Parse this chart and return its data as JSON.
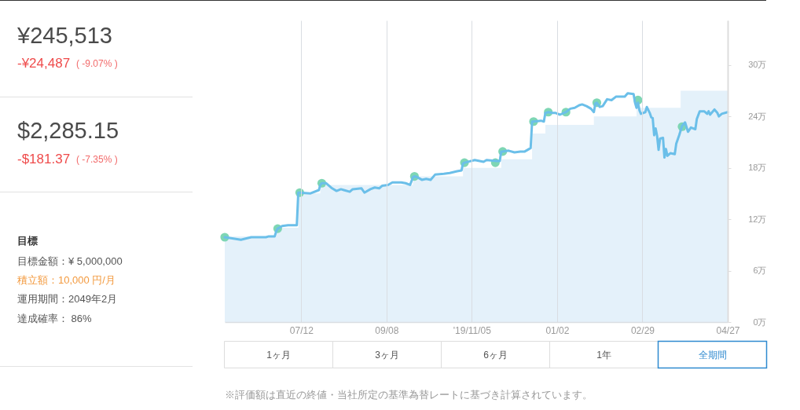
{
  "chart_data": [
    {
      "type": "other",
      "annotations": [
        "¥245,513",
        "-¥24,487",
        "( -9.07% )",
        "$2,285.15",
        "-$181.37",
        "( -7.35% )",
        "目標",
        "目標金額：¥ 5,000,000",
        "積立額：10,000 円/月",
        "運用期間：2049年2月",
        "達成確率： 86%"
      ]
    },
    {
      "type": "line",
      "xlim": [
        "2019-05-21",
        "2020-04-27"
      ],
      "xticks": [
        {
          "value": "2019-07-12",
          "label": "07/12"
        },
        {
          "value": "2019-09-08",
          "label": "09/08"
        },
        {
          "value": "2019-11-05",
          "label": "'19/11/05"
        },
        {
          "value": "2020-01-02",
          "label": "01/02"
        },
        {
          "value": "2020-02-29",
          "label": "02/29"
        },
        {
          "value": "2020-04-27",
          "label": "04/27"
        }
      ],
      "ylim": [
        0,
        35.2
      ],
      "yticks": [
        {
          "value": 0,
          "label": "0万"
        },
        {
          "value": 6,
          "label": "6万"
        },
        {
          "value": 12,
          "label": "12万"
        },
        {
          "value": 18,
          "label": "18万"
        },
        {
          "value": 24,
          "label": "24万"
        },
        {
          "value": 30,
          "label": "30万"
        }
      ],
      "grid": "x",
      "series": [
        {
          "type": "area",
          "color": "#e4f1fa",
          "x": [
            "2019-05-21",
            "2019-06-25",
            "2019-06-25",
            "2019-07-10",
            "2019-07-10",
            "2019-07-25",
            "2019-07-25",
            "2019-09-26",
            "2019-09-26",
            "2019-10-30",
            "2019-10-30",
            "2019-11-25",
            "2019-11-25",
            "2019-12-16",
            "2019-12-16",
            "2019-12-25",
            "2019-12-25",
            "2020-01-27",
            "2020-01-27",
            "2020-02-25",
            "2020-02-25",
            "2020-03-26",
            "2020-03-26",
            "2020-04-27"
          ],
          "values": [
            10,
            10,
            11,
            11,
            15,
            15,
            16,
            16,
            17,
            17,
            18,
            18,
            19,
            19,
            22,
            22,
            23,
            23,
            24,
            24,
            25,
            25,
            27,
            27
          ]
        },
        {
          "type": "line",
          "color": "#6bbfe9",
          "x": [
            "2019-05-21",
            "2019-06-01",
            "2019-06-08",
            "2019-06-18",
            "2019-06-20",
            "2019-06-24",
            "2019-06-25",
            "2019-06-26",
            "2019-06-29",
            "2019-07-03",
            "2019-07-09",
            "2019-07-10",
            "2019-07-11",
            "2019-07-18",
            "2019-07-24",
            "2019-07-25",
            "2019-07-26",
            "2019-07-29",
            "2019-08-02",
            "2019-08-05",
            "2019-08-08",
            "2019-08-10",
            "2019-08-14",
            "2019-08-16",
            "2019-08-22",
            "2019-08-24",
            "2019-08-28",
            "2019-08-31",
            "2019-09-03",
            "2019-09-05",
            "2019-09-09",
            "2019-09-12",
            "2019-09-18",
            "2019-09-21",
            "2019-09-24",
            "2019-09-26",
            "2019-09-27",
            "2019-09-29",
            "2019-10-02",
            "2019-10-05",
            "2019-10-08",
            "2019-10-11",
            "2019-10-17",
            "2019-10-21",
            "2019-10-26",
            "2019-10-29",
            "2019-10-30",
            "2019-10-31",
            "2019-11-07",
            "2019-11-13",
            "2019-11-15",
            "2019-11-22",
            "2019-11-24",
            "2019-11-25",
            "2019-11-26",
            "2019-11-30",
            "2019-12-04",
            "2019-12-08",
            "2019-12-11",
            "2019-12-14",
            "2019-12-15",
            "2019-12-16",
            "2019-12-17",
            "2019-12-22",
            "2019-12-24",
            "2019-12-25",
            "2019-12-27",
            "2019-12-30",
            "2020-01-01",
            "2020-01-04",
            "2020-01-08",
            "2020-01-11",
            "2020-01-14",
            "2020-01-17",
            "2020-01-19",
            "2020-01-22",
            "2020-01-25",
            "2020-01-27",
            "2020-01-28",
            "2020-01-29",
            "2020-01-31",
            "2020-02-02",
            "2020-02-05",
            "2020-02-08",
            "2020-02-11",
            "2020-02-17",
            "2020-02-19",
            "2020-02-23",
            "2020-02-24",
            "2020-02-25",
            "2020-02-26",
            "2020-02-27",
            "2020-02-28",
            "2020-03-02",
            "2020-03-03",
            "2020-03-05",
            "2020-03-06",
            "2020-03-07",
            "2020-03-08",
            "2020-03-09",
            "2020-03-10",
            "2020-03-11",
            "2020-03-12",
            "2020-03-14",
            "2020-03-15",
            "2020-03-16",
            "2020-03-17",
            "2020-03-19",
            "2020-03-22",
            "2020-03-23",
            "2020-03-25",
            "2020-03-27",
            "2020-03-29",
            "2020-03-31",
            "2020-04-02",
            "2020-04-05",
            "2020-04-06",
            "2020-04-08",
            "2020-04-11",
            "2020-04-13",
            "2020-04-14",
            "2020-04-15",
            "2020-04-18",
            "2020-04-20",
            "2020-04-21",
            "2020-04-23",
            "2020-04-27"
          ],
          "values": [
            9.9,
            9.6,
            9.9,
            9.9,
            10.0,
            10.0,
            10.6,
            10.9,
            11.2,
            11.3,
            11.3,
            15.1,
            15.1,
            15.0,
            15.4,
            16.0,
            16.2,
            16.2,
            15.6,
            15.3,
            15.5,
            15.4,
            15.2,
            15.5,
            15.6,
            15.1,
            15.5,
            15.7,
            15.6,
            15.9,
            16.0,
            16.3,
            16.3,
            16.2,
            16.0,
            16.9,
            17.0,
            16.9,
            16.6,
            16.7,
            16.6,
            17.2,
            17.3,
            17.4,
            17.6,
            17.7,
            18.5,
            18.6,
            18.9,
            18.7,
            18.9,
            18.8,
            18.8,
            19.9,
            19.9,
            20.0,
            19.8,
            19.9,
            19.9,
            20.2,
            20.3,
            23.4,
            23.4,
            23.5,
            23.4,
            24.4,
            24.5,
            24.4,
            24.4,
            24.2,
            24.5,
            24.9,
            25.0,
            25.3,
            25.4,
            25.2,
            24.9,
            24.5,
            25.5,
            25.6,
            25.1,
            25.2,
            26.0,
            25.9,
            26.3,
            26.3,
            26.7,
            26.6,
            25.6,
            25.0,
            25.6,
            24.7,
            24.3,
            24.5,
            25.1,
            24.4,
            23.9,
            23.8,
            21.8,
            22.6,
            21.7,
            20.1,
            21.4,
            21.5,
            19.2,
            20.2,
            19.4,
            19.7,
            19.6,
            20.8,
            21.8,
            22.9,
            23.3,
            22.2,
            22.7,
            22.5,
            23.7,
            24.6,
            24.6,
            24.3,
            24.6,
            24.2,
            24.8,
            24.4,
            24.0,
            24.3,
            24.5
          ]
        },
        {
          "type": "scatter",
          "marker": "circle",
          "color": "#7ed6b4",
          "x": [
            "2019-05-21",
            "2019-06-26",
            "2019-07-11",
            "2019-07-26",
            "2019-09-27",
            "2019-10-31",
            "2019-11-21",
            "2019-11-26",
            "2019-12-17",
            "2019-12-27",
            "2020-01-08",
            "2020-01-29",
            "2020-02-26",
            "2020-03-27"
          ],
          "values": [
            9.9,
            10.9,
            15.1,
            16.2,
            17.0,
            18.6,
            18.6,
            19.9,
            23.4,
            24.5,
            24.5,
            25.6,
            25.9,
            22.8
          ]
        }
      ],
      "annotations": [
        "1ヶ月",
        "3ヶ月",
        "6ヶ月",
        "1年",
        "全期間",
        "※評価額は直近の終値・当社所定の基準為替レートに基づき計算されています。"
      ]
    }
  ]
}
